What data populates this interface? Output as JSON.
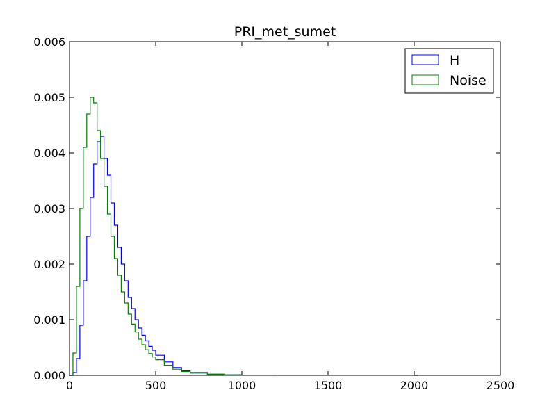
{
  "chart_data": {
    "type": "histogram",
    "title": "PRI_met_sumet",
    "xlabel": "",
    "ylabel": "",
    "xlim": [
      0,
      2500
    ],
    "ylim": [
      0,
      0.006
    ],
    "x_ticks": [
      "0",
      "500",
      "1000",
      "1500",
      "2000",
      "2500"
    ],
    "y_ticks": [
      "0.000",
      "0.001",
      "0.002",
      "0.003",
      "0.004",
      "0.005",
      "0.006"
    ],
    "grid": false,
    "legend_position": "top-right",
    "histtype": "step",
    "x": [
      0,
      20,
      40,
      60,
      80,
      100,
      120,
      140,
      160,
      180,
      200,
      220,
      240,
      260,
      280,
      300,
      320,
      340,
      360,
      380,
      400,
      420,
      440,
      460,
      480,
      500,
      550,
      600,
      650,
      700,
      800,
      900,
      1000,
      1200,
      1500,
      2000
    ],
    "series": [
      {
        "name": "H",
        "color": "#0000ff",
        "values": [
          0,
          5e-05,
          0.0003,
          0.0009,
          0.0017,
          0.0025,
          0.0032,
          0.0038,
          0.0042,
          0.0043,
          0.0039,
          0.0036,
          0.0031,
          0.0027,
          0.0023,
          0.002,
          0.0017,
          0.0014,
          0.0012,
          0.001,
          0.00085,
          0.00072,
          0.00062,
          0.00052,
          0.00045,
          0.00036,
          0.00024,
          0.00014,
          8e-05,
          5e-05,
          2e-05,
          1e-05,
          5e-06,
          2e-06,
          1e-06,
          0
        ]
      },
      {
        "name": "Noise",
        "color": "#008000",
        "values": [
          0,
          0.0004,
          0.0016,
          0.003,
          0.0041,
          0.0047,
          0.005,
          0.0049,
          0.0044,
          0.0039,
          0.0034,
          0.0029,
          0.0025,
          0.0021,
          0.0018,
          0.0015,
          0.0013,
          0.0011,
          0.00092,
          0.00078,
          0.00065,
          0.00055,
          0.00046,
          0.00039,
          0.00033,
          0.00028,
          0.00018,
          0.00011,
          7e-05,
          4e-05,
          2e-05,
          1e-05,
          5e-06,
          2e-06,
          1e-06,
          0
        ]
      }
    ]
  }
}
